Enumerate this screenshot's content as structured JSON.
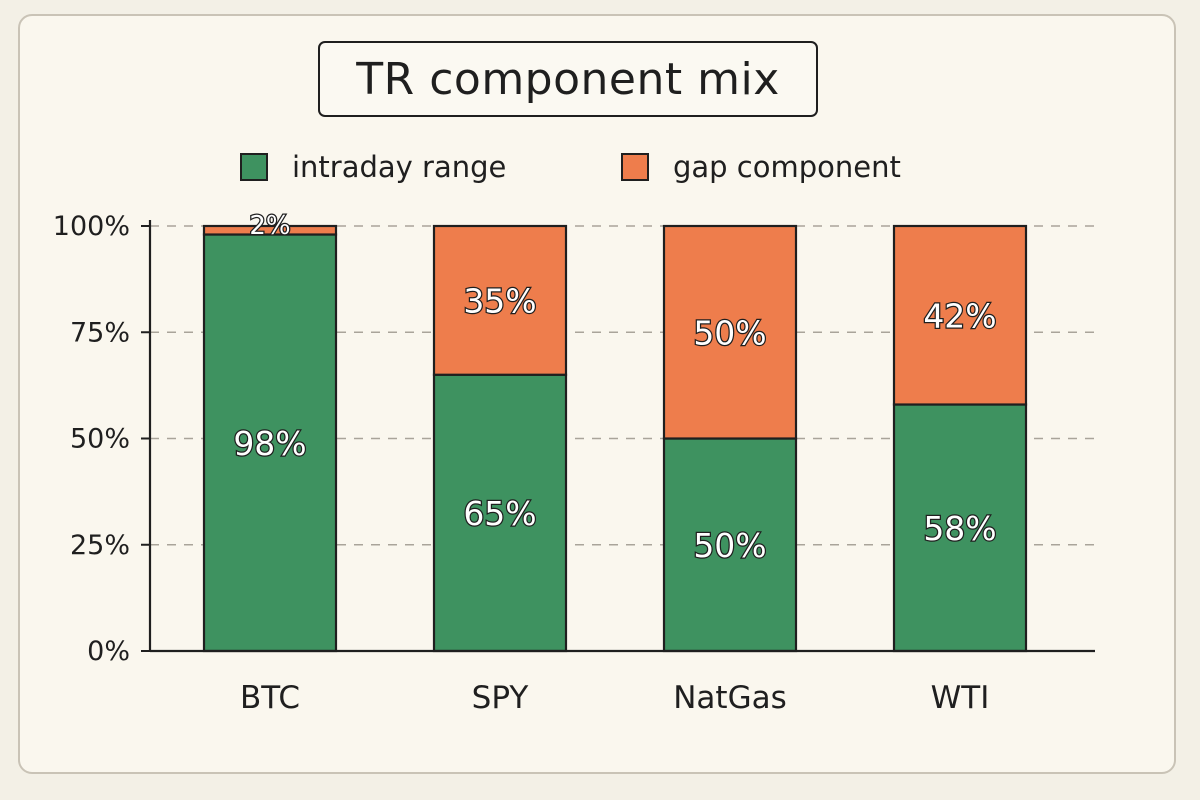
{
  "chart_data": {
    "type": "bar",
    "stacked": true,
    "title": "TR component mix",
    "categories": [
      "BTC",
      "SPY",
      "NatGas",
      "WTI"
    ],
    "series": [
      {
        "name": "intraday range",
        "values": [
          98,
          65,
          50,
          58
        ],
        "color": "#3e9260"
      },
      {
        "name": "gap component",
        "values": [
          2,
          35,
          50,
          42
        ],
        "color": "#ee7d4c"
      }
    ],
    "y_ticks": [
      "0%",
      "25%",
      "50%",
      "75%",
      "100%"
    ],
    "ylim": [
      0,
      100
    ],
    "grid": true,
    "legend": "top"
  }
}
